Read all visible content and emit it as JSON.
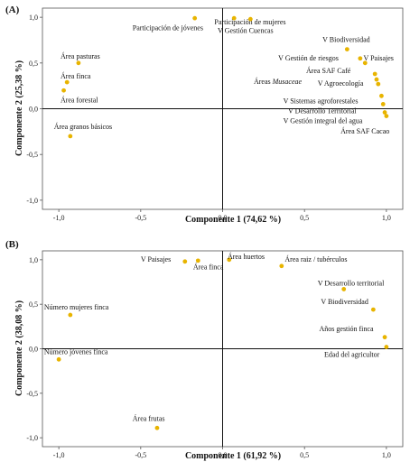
{
  "chart_data": [
    {
      "type": "scatter",
      "panel_label": "(A)",
      "xlabel": "Componente 1 (74,62 %)",
      "ylabel": "Componente 2 (25,38 %)",
      "xlim": [
        -1.1,
        1.1
      ],
      "ylim": [
        -1.1,
        1.1
      ],
      "x_ticks": [
        -1.0,
        -0.5,
        0.0,
        0.5,
        1.0
      ],
      "x_tick_labels": [
        "-1,0",
        "-0,5",
        "0,0",
        "0,5",
        "1,0"
      ],
      "y_ticks": [
        -1.0,
        -0.5,
        0.0,
        0.5,
        1.0
      ],
      "y_tick_labels": [
        "-1,0",
        "-0,5",
        "0,0",
        "0,5",
        "1,0"
      ],
      "point_color": "#e8b400",
      "points": [
        {
          "label": "Participación de jóvenes",
          "x": -0.17,
          "y": 0.99,
          "lx": -0.55,
          "ly": 0.86
        },
        {
          "label": "Participación de mujeres",
          "x": 0.07,
          "y": 0.99,
          "lx": -0.05,
          "ly": 0.92
        },
        {
          "label": "V Gestión Cuencas",
          "x": 0.17,
          "y": 0.98,
          "lx": -0.03,
          "ly": 0.83
        },
        {
          "label": "V Biodiversidad",
          "x": 0.76,
          "y": 0.65,
          "lx": 0.61,
          "ly": 0.73
        },
        {
          "label": "V Gestión de riesgos",
          "x": 0.84,
          "y": 0.55,
          "lx": 0.34,
          "ly": 0.53
        },
        {
          "label": "V Paisajes",
          "x": 0.87,
          "y": 0.5,
          "lx": 0.86,
          "ly": 0.53
        },
        {
          "label": "Área SAF Café",
          "x": 0.93,
          "y": 0.38,
          "lx": 0.51,
          "ly": 0.39
        },
        {
          "label": "V Agroecología",
          "x": 0.94,
          "y": 0.32,
          "lx": 0.58,
          "ly": 0.25
        },
        {
          "label": "Áreas Musaceae",
          "x": 0.95,
          "y": 0.27,
          "lx": 0.19,
          "ly": 0.27
        },
        {
          "label": "V Sistemas agroforestales",
          "x": 0.97,
          "y": 0.14,
          "lx": 0.37,
          "ly": 0.06
        },
        {
          "label": "V Desarrollo Territorial",
          "x": 0.98,
          "y": 0.05,
          "lx": 0.4,
          "ly": -0.05
        },
        {
          "label": "V Gestión integral del agua",
          "x": 0.99,
          "y": -0.04,
          "lx": 0.37,
          "ly": -0.16
        },
        {
          "label": "Área SAF Cacao",
          "x": 1.0,
          "y": -0.08,
          "lx": 0.72,
          "ly": -0.27
        },
        {
          "label": "Área pasturas",
          "x": -0.88,
          "y": 0.5,
          "lx": -0.99,
          "ly": 0.55
        },
        {
          "label": "Área finca",
          "x": -0.95,
          "y": 0.29,
          "lx": -0.99,
          "ly": 0.33
        },
        {
          "label": "Área forestal",
          "x": -0.97,
          "y": 0.2,
          "lx": -0.99,
          "ly": 0.07
        },
        {
          "label": "Área granos básicos",
          "x": -0.93,
          "y": -0.3,
          "lx": -1.03,
          "ly": -0.22
        }
      ]
    },
    {
      "type": "scatter",
      "panel_label": "(B)",
      "xlabel": "Componente 1 (61,92 %)",
      "ylabel": "Componente 2 (38,08 %)",
      "xlim": [
        -1.1,
        1.1
      ],
      "ylim": [
        -1.1,
        1.1
      ],
      "x_ticks": [
        -1.0,
        -0.5,
        0.0,
        0.5,
        1.0
      ],
      "x_tick_labels": [
        "-1,0",
        "-0,5",
        "0,0",
        "0,5",
        "1,0"
      ],
      "y_ticks": [
        -1.0,
        -0.5,
        0.0,
        0.5,
        1.0
      ],
      "y_tick_labels": [
        "-1,0",
        "-0,5",
        "0,0",
        "0,5",
        "1,0"
      ],
      "point_color": "#e8b400",
      "points": [
        {
          "label": "V Paisajes",
          "x": -0.23,
          "y": 0.98,
          "lx": -0.5,
          "ly": 0.98
        },
        {
          "label": "Área finca",
          "x": -0.15,
          "y": 0.99,
          "lx": -0.18,
          "ly": 0.89
        },
        {
          "label": "Área huertos",
          "x": 0.04,
          "y": 1.0,
          "lx": 0.03,
          "ly": 1.01
        },
        {
          "label": "Área raiz / tubérculos",
          "x": 0.36,
          "y": 0.93,
          "lx": 0.38,
          "ly": 0.98
        },
        {
          "label": "V Desarrollo territorial",
          "x": 0.74,
          "y": 0.67,
          "lx": 0.58,
          "ly": 0.71
        },
        {
          "label": "V Biodiversidad",
          "x": 0.92,
          "y": 0.44,
          "lx": 0.6,
          "ly": 0.5
        },
        {
          "label": "Años gestión finca",
          "x": 0.99,
          "y": 0.13,
          "lx": 0.59,
          "ly": 0.2
        },
        {
          "label": "Edad del agricultor",
          "x": 1.0,
          "y": 0.02,
          "lx": 0.62,
          "ly": -0.09
        },
        {
          "label": "Número mujeres finca",
          "x": -0.93,
          "y": 0.38,
          "lx": -1.09,
          "ly": 0.44
        },
        {
          "label": "Número jóvenes finca",
          "x": -1.0,
          "y": -0.12,
          "lx": -1.09,
          "ly": -0.06
        },
        {
          "label": "Área frutas",
          "x": -0.4,
          "y": -0.89,
          "lx": -0.55,
          "ly": -0.81
        }
      ]
    }
  ]
}
